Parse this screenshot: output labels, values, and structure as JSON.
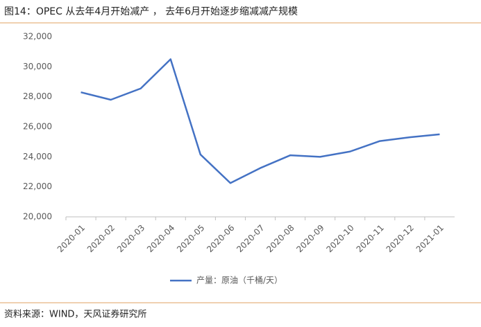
{
  "chart_data": {
    "type": "line",
    "title": "图14：OPEC 从去年4月开始减产 ， 去年6月开始逐步缩减减产规模",
    "source": "资料来源：WIND，天风证券研究所",
    "categories": [
      "2020-01",
      "2020-02",
      "2020-03",
      "2020-04",
      "2020-05",
      "2020-06",
      "2020-07",
      "2020-08",
      "2020-09",
      "2020-10",
      "2020-11",
      "2020-12",
      "2021-01"
    ],
    "series": [
      {
        "name": "产量：原油（千桶/天）",
        "color": "#4472c4",
        "values": [
          28300,
          27800,
          28550,
          30500,
          24150,
          22250,
          23250,
          24100,
          24000,
          24350,
          25050,
          25300,
          25500
        ]
      }
    ],
    "ylim": [
      20000,
      32000
    ],
    "yticks": [
      {
        "value": 20000,
        "label": "20,000"
      },
      {
        "value": 22000,
        "label": "22,000"
      },
      {
        "value": 24000,
        "label": "24,000"
      },
      {
        "value": 26000,
        "label": "26,000"
      },
      {
        "value": 28000,
        "label": "28,000"
      },
      {
        "value": 30000,
        "label": "30,000"
      },
      {
        "value": 32000,
        "label": "32,000"
      }
    ],
    "grid": false,
    "legend": "bottom"
  }
}
